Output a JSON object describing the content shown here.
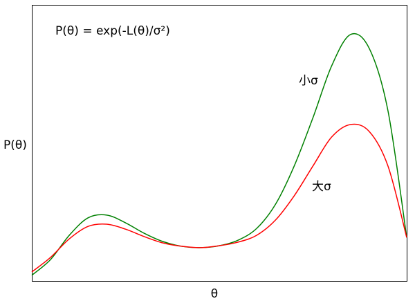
{
  "chart_data": {
    "type": "line",
    "annotation": "P(θ) = exp(-L(θ)/σ²)",
    "x_label": "θ",
    "y_label": "P(θ)",
    "x": [
      0,
      0.5,
      1,
      1.5,
      2,
      2.5,
      3,
      3.5,
      4,
      4.5,
      5,
      5.5,
      6,
      6.5,
      7,
      7.5,
      8,
      8.5,
      9,
      9.5,
      10
    ],
    "series": [
      {
        "name": "小σ",
        "color": "#008000",
        "values": [
          0.023,
          0.08,
          0.168,
          0.231,
          0.241,
          0.213,
          0.175,
          0.145,
          0.128,
          0.123,
          0.13,
          0.15,
          0.193,
          0.28,
          0.419,
          0.594,
          0.782,
          0.895,
          0.845,
          0.619,
          0.16
        ]
      },
      {
        "name": "大σ",
        "color": "#ff0000",
        "values": [
          0.035,
          0.088,
          0.155,
          0.2,
          0.208,
          0.19,
          0.163,
          0.14,
          0.128,
          0.123,
          0.13,
          0.143,
          0.168,
          0.223,
          0.311,
          0.419,
          0.524,
          0.569,
          0.544,
          0.419,
          0.16
        ]
      }
    ],
    "xlim": [
      0,
      10
    ],
    "ylim": [
      0,
      1
    ]
  }
}
